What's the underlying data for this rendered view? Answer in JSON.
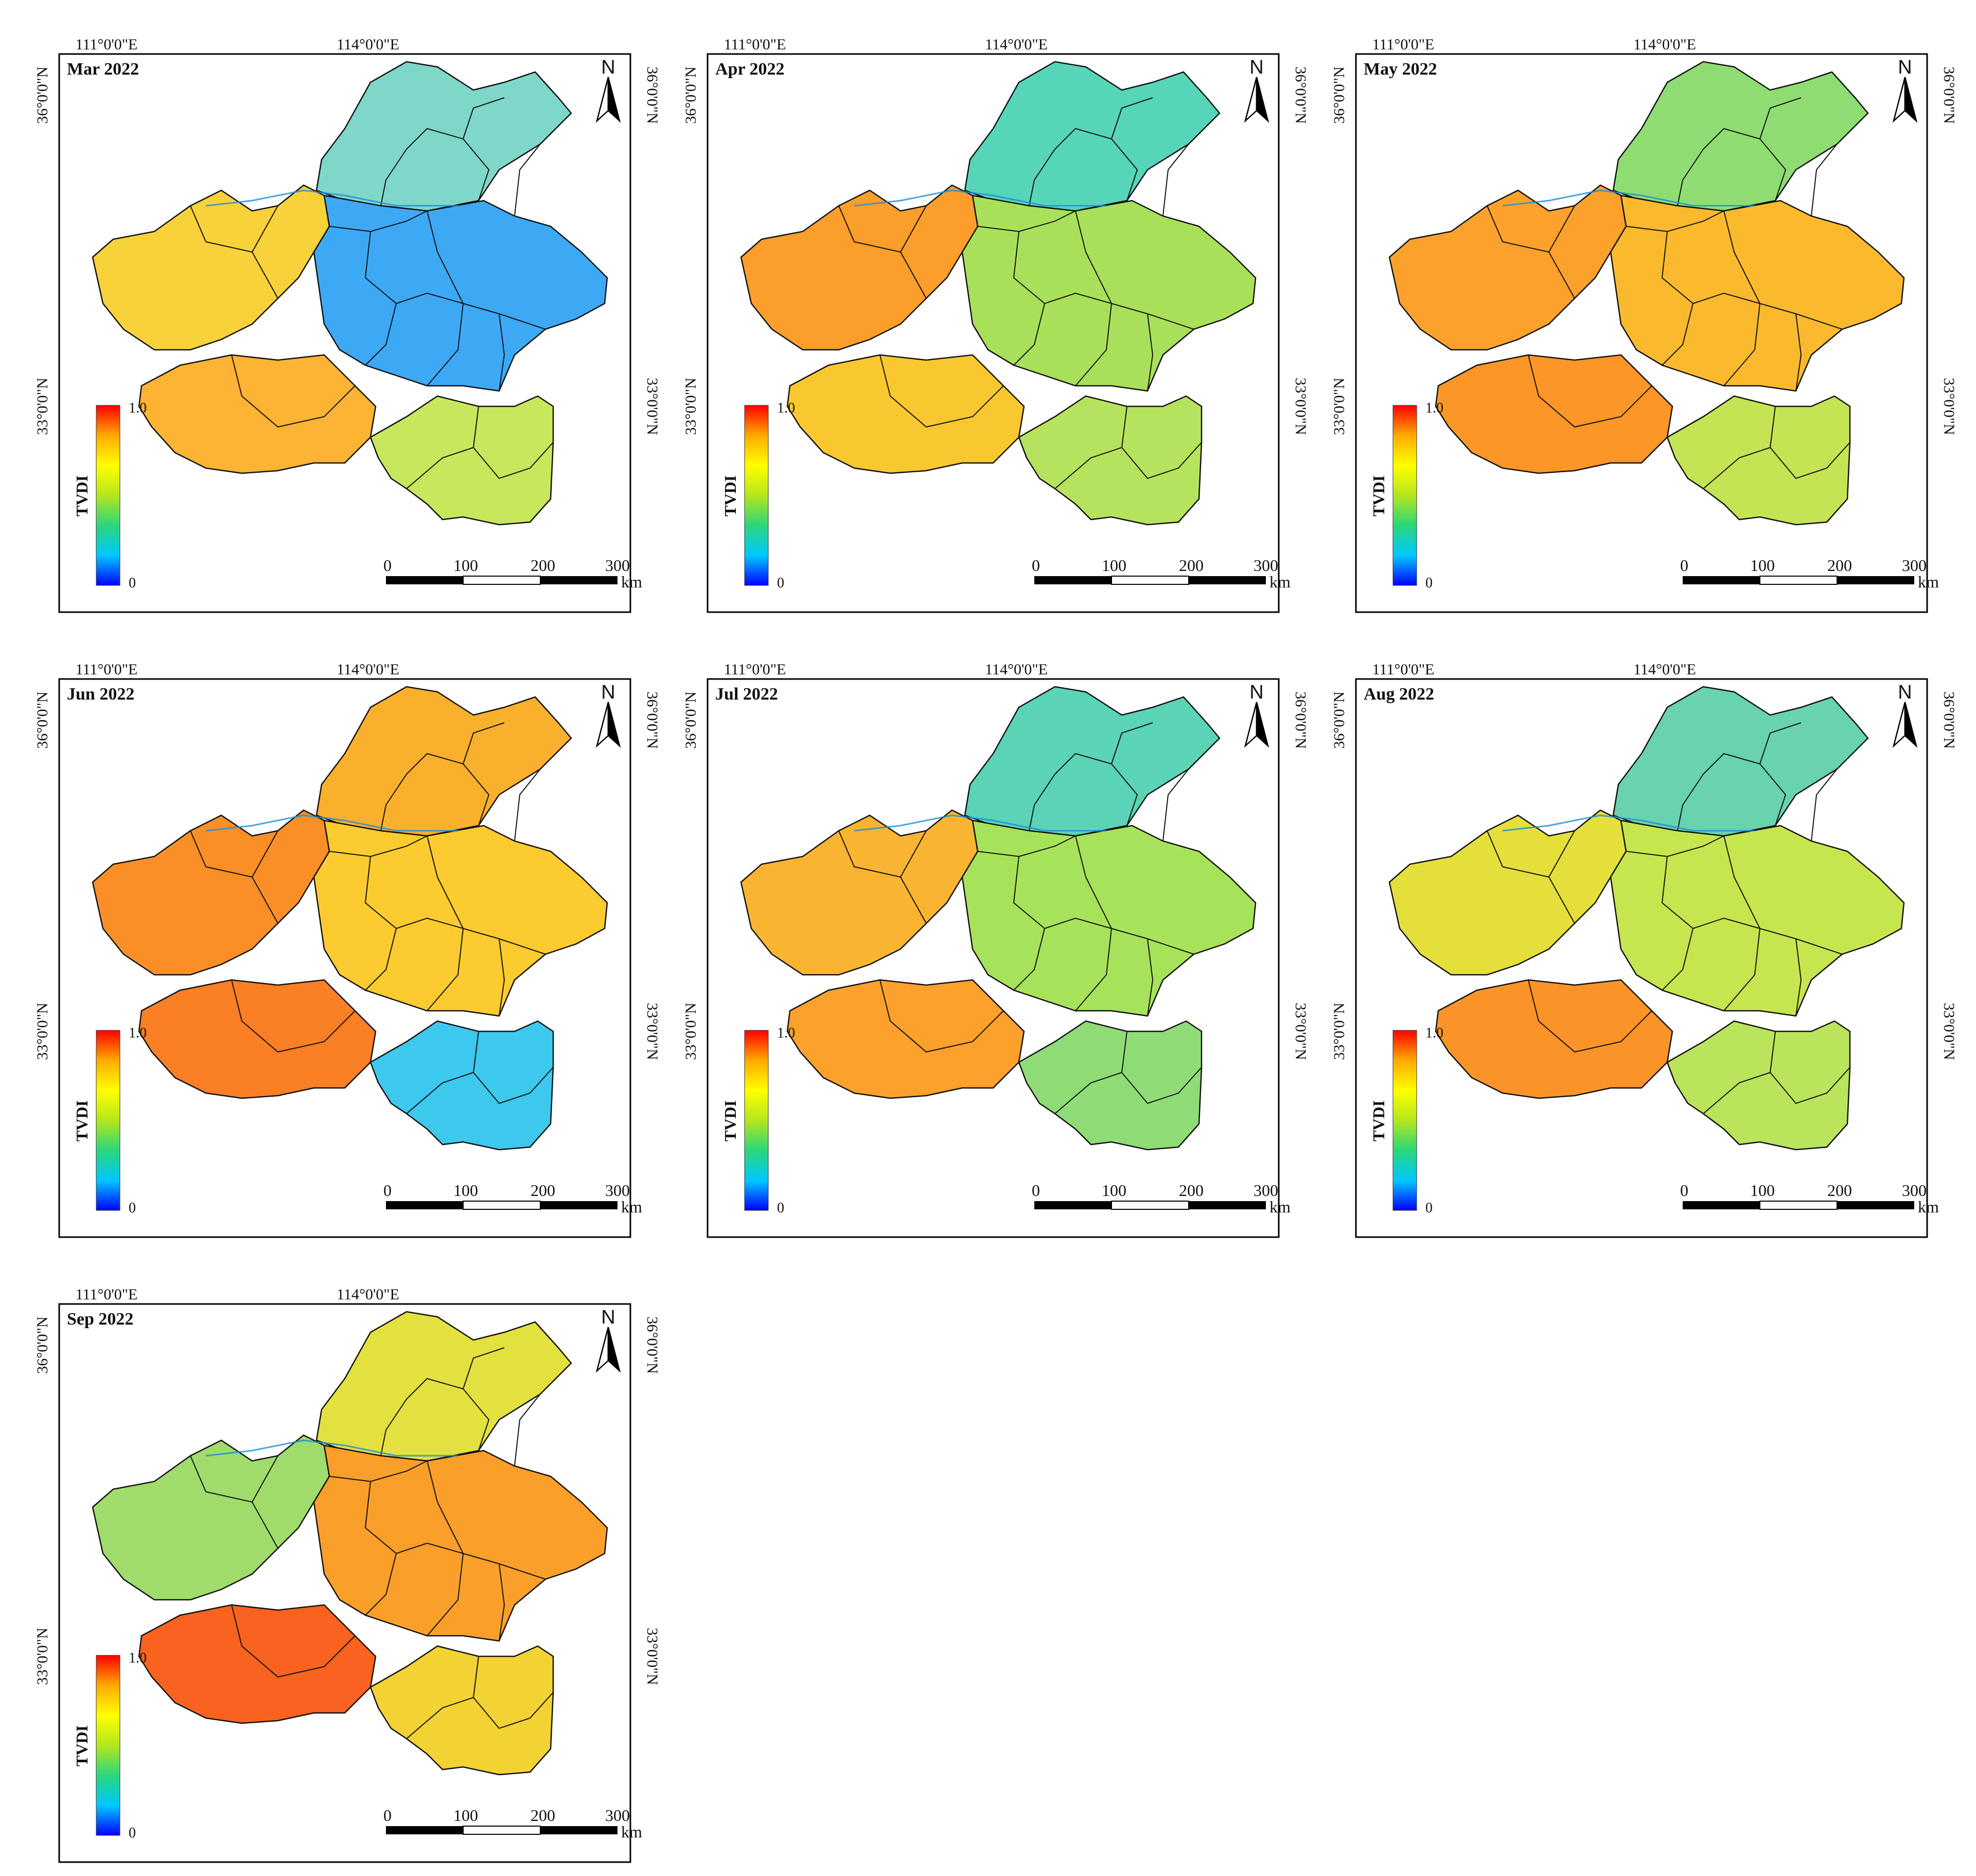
{
  "figure": {
    "background": "#ffffff",
    "panel_count": 7
  },
  "axis_labels": {
    "lon_west": "111°0'0\"E",
    "lon_east": "114°0'0\"E",
    "lat_north": "36°0'0\"N",
    "lat_south": "33°0'0\"N"
  },
  "legend": {
    "title": "TVDI",
    "max_label": "1.0",
    "min_label": "0",
    "colors": [
      "#0000ff",
      "#00c8ff",
      "#2ad67a",
      "#b5e61d",
      "#ffff00",
      "#ffaa00",
      "#ff0000"
    ]
  },
  "scale_bar": {
    "ticks": [
      "0",
      "100",
      "200",
      "300"
    ],
    "unit": "km"
  },
  "north_arrow": {
    "label": "N",
    "icon": "north-arrow-icon"
  },
  "panels": [
    {
      "title": "Mar 2022",
      "colors": {
        "north": "#7fd7c9",
        "center": "#3da9f5",
        "southwest": "#fdb333",
        "southeast": "#c7e85c",
        "west": "#f7d23a"
      }
    },
    {
      "title": "Apr 2022",
      "colors": {
        "north": "#57d5b9",
        "center": "#a9e05a",
        "southwest": "#f9c830",
        "southeast": "#b6e35e",
        "west": "#fb9e2b"
      }
    },
    {
      "title": "May 2022",
      "colors": {
        "north": "#8fdd72",
        "center": "#fbba2e",
        "southwest": "#fb9627",
        "southeast": "#c4e454",
        "west": "#fca22c"
      }
    },
    {
      "title": "Jun 2022",
      "colors": {
        "north": "#f9b02d",
        "center": "#fbcb2f",
        "southwest": "#fb7f25",
        "southeast": "#3dc8ee",
        "west": "#fa8f28"
      }
    },
    {
      "title": "Jul 2022",
      "colors": {
        "north": "#5bd3b6",
        "center": "#a7e35a",
        "southwest": "#fba12c",
        "southeast": "#8fdc77",
        "west": "#f9b531"
      }
    },
    {
      "title": "Aug 2022",
      "colors": {
        "north": "#68d3ae",
        "center": "#c6e650",
        "southwest": "#fb9428",
        "southeast": "#b9e45c",
        "west": "#e5df3c"
      }
    },
    {
      "title": "Sep 2022",
      "colors": {
        "north": "#e3e140",
        "center": "#fb9f2b",
        "southwest": "#f9621f",
        "southeast": "#f3d233",
        "west": "#9fdc6b"
      }
    }
  ]
}
